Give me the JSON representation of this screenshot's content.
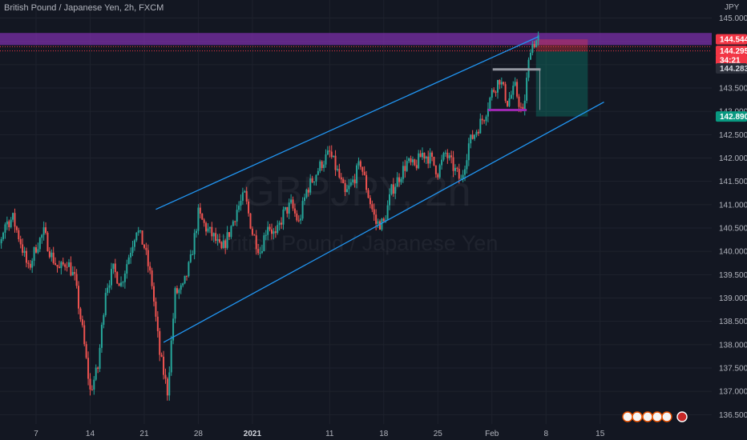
{
  "symbol_title": "British Pound / Japanese Yen, 2h, FXCM",
  "watermark": {
    "ticker": "GBPJPY, 2h",
    "name": "British Pound / Japanese Yen"
  },
  "currency_unit": "JPY",
  "chart_data": {
    "type": "candlestick",
    "y_axis": {
      "range": [
        136.3,
        145.3
      ],
      "ticks": [
        "136.500",
        "137.000",
        "137.500",
        "138.000",
        "138.500",
        "139.000",
        "139.500",
        "140.000",
        "140.500",
        "141.000",
        "141.500",
        "142.000",
        "142.500",
        "143.000",
        "143.500",
        "144.000",
        "144.500",
        "145.000"
      ],
      "grid": true
    },
    "x_axis": {
      "ticks": [
        {
          "label": "7",
          "day": 7
        },
        {
          "label": "14",
          "day": 14
        },
        {
          "label": "21",
          "day": 21
        },
        {
          "label": "28",
          "day": 28
        },
        {
          "label": "2021",
          "day": 35,
          "bold": true
        },
        {
          "label": "11",
          "day": 45
        },
        {
          "label": "18",
          "day": 52
        },
        {
          "label": "25",
          "day": 59
        },
        {
          "label": "Feb",
          "day": 66
        },
        {
          "label": "8",
          "day": 73
        },
        {
          "label": "15",
          "day": 80
        }
      ]
    },
    "price_path": [
      [
        0,
        139.8
      ],
      [
        1,
        140.4
      ],
      [
        2,
        140.0
      ],
      [
        3,
        140.6
      ],
      [
        4,
        140.7
      ],
      [
        5,
        140.2
      ],
      [
        6,
        139.6
      ],
      [
        7,
        140.1
      ],
      [
        8,
        140.4
      ],
      [
        9,
        139.9
      ],
      [
        10,
        139.6
      ],
      [
        11,
        139.8
      ],
      [
        12,
        139.4
      ],
      [
        13,
        138.3
      ],
      [
        14,
        137.0
      ],
      [
        15,
        137.5
      ],
      [
        16,
        139.2
      ],
      [
        17,
        139.6
      ],
      [
        18,
        139.3
      ],
      [
        19,
        139.9
      ],
      [
        20,
        140.5
      ],
      [
        21,
        140.1
      ],
      [
        22,
        139.3
      ],
      [
        23,
        137.8
      ],
      [
        24,
        137.0
      ],
      [
        25,
        139.1
      ],
      [
        26,
        139.2
      ],
      [
        27,
        139.8
      ],
      [
        28,
        140.8
      ],
      [
        29,
        140.5
      ],
      [
        30,
        140.3
      ],
      [
        31,
        140.0
      ],
      [
        32,
        140.4
      ],
      [
        33,
        140.9
      ],
      [
        34,
        141.2
      ],
      [
        35,
        140.4
      ],
      [
        36,
        140.0
      ],
      [
        37,
        140.6
      ],
      [
        38,
        140.3
      ],
      [
        39,
        140.8
      ],
      [
        40,
        141.0
      ],
      [
        41,
        140.6
      ],
      [
        42,
        141.3
      ],
      [
        43,
        141.6
      ],
      [
        44,
        141.9
      ],
      [
        45,
        142.1
      ],
      [
        46,
        141.7
      ],
      [
        47,
        141.2
      ],
      [
        48,
        141.5
      ],
      [
        49,
        141.9
      ],
      [
        50,
        141.2
      ],
      [
        51,
        140.6
      ],
      [
        52,
        140.6
      ],
      [
        53,
        141.3
      ],
      [
        54,
        141.6
      ],
      [
        55,
        141.9
      ],
      [
        56,
        141.8
      ],
      [
        57,
        142.1
      ],
      [
        58,
        142.0
      ],
      [
        59,
        141.7
      ],
      [
        60,
        142.1
      ],
      [
        61,
        141.8
      ],
      [
        62,
        141.5
      ],
      [
        63,
        142.3
      ],
      [
        64,
        142.6
      ],
      [
        65,
        142.9
      ],
      [
        66,
        143.4
      ],
      [
        67,
        143.7
      ],
      [
        68,
        143.2
      ],
      [
        69,
        143.5
      ],
      [
        70,
        142.9
      ],
      [
        71,
        144.4
      ],
      [
        72,
        144.55
      ]
    ],
    "last_close": 144.295
  },
  "annotations": {
    "channel_upper": {
      "start": [
        22.5,
        140.9
      ],
      "end": [
        72,
        144.6
      ]
    },
    "channel_lower": {
      "start": [
        23.5,
        138.05
      ],
      "end": [
        80.5,
        143.2
      ]
    },
    "resistance_zone": {
      "from": 144.42,
      "to": 144.68,
      "color": "#7b2fa8"
    },
    "short_position": {
      "entry": 144.283,
      "stop": 144.544,
      "target": 142.89,
      "from_day": 71.7,
      "to_day": 78.4
    },
    "inner_box_top": 143.9,
    "inner_box_bottom": 143.03
  },
  "price_labels": [
    {
      "text": "144.544",
      "price": 144.544,
      "bg": "#f23645",
      "fg": "#ffffff"
    },
    {
      "text": "144.295",
      "price": 144.295,
      "bg": "#f23645",
      "fg": "#ffffff"
    },
    {
      "text": "34:21",
      "price": 144.1,
      "bg": "#f23645",
      "fg": "#ffffff"
    },
    {
      "text": "144.283",
      "price": 143.92,
      "bg": "#2a2e39",
      "fg": "#d1d4dc"
    },
    {
      "text": "142.890",
      "price": 142.89,
      "bg": "#089981",
      "fg": "#ffffff"
    }
  ],
  "colors": {
    "background": "#131722",
    "grid": "#1e222d",
    "up": "#26a69a",
    "down": "#ef5350",
    "channel": "#2196f3",
    "axis_text": "#b2b5be"
  }
}
